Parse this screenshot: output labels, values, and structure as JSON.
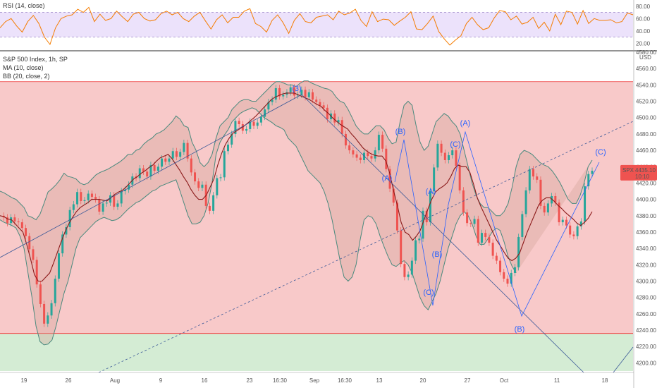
{
  "chart_data": [
    {
      "type": "line",
      "panel": "rsi",
      "title": "RSI (14, close)",
      "ylim": [
        10,
        90
      ],
      "y_ticks": [
        "80.00",
        "60.00",
        "40.00",
        "20.00"
      ],
      "y_tick_values": [
        80,
        60,
        40,
        20
      ],
      "band": [
        30,
        70
      ],
      "series": [
        {
          "values": [
            45,
            55,
            60,
            48,
            38,
            55,
            65,
            52,
            30,
            18,
            45,
            60,
            64,
            66,
            75,
            70,
            78,
            55,
            67,
            57,
            60,
            72,
            63,
            55,
            67,
            70,
            60,
            56,
            58,
            68,
            72,
            66,
            70,
            60,
            55,
            64,
            70,
            56,
            43,
            58,
            66,
            53,
            62,
            62,
            72,
            76,
            52,
            47,
            38,
            57,
            66,
            53,
            36,
            57,
            68,
            55,
            53,
            62,
            64,
            66,
            58,
            72,
            66,
            69,
            75,
            57,
            47,
            71,
            55,
            59,
            58,
            49,
            56,
            62,
            71,
            43,
            42,
            52,
            64,
            39,
            27,
            17,
            25,
            32,
            52,
            62,
            50,
            42,
            45,
            61,
            73,
            71,
            58,
            64,
            51,
            54,
            62,
            44,
            54,
            40,
            67,
            50,
            72,
            70,
            51,
            73,
            52,
            60,
            57,
            57,
            58,
            53,
            55,
            69,
            66
          ]
        }
      ]
    },
    {
      "type": "line",
      "panel": "price",
      "title": "S&P 500 Index, 1h, SP",
      "indicators": [
        "MA (10, close)",
        "BB (20, close, 2)"
      ],
      "currency": "USD",
      "ylim": [
        4190,
        4580
      ],
      "y_ticks": [
        "4580.00",
        "4560.00",
        "4540.00",
        "4520.00",
        "4500.00",
        "4480.00",
        "4460.00",
        "4440.00",
        "4420.00",
        "4400.00",
        "4380.00",
        "4360.00",
        "4340.00",
        "4320.00",
        "4300.00",
        "4280.00",
        "4260.00",
        "4240.00",
        "4220.00",
        "4200.00"
      ],
      "y_tick_values": [
        4580,
        4560,
        4540,
        4520,
        4500,
        4480,
        4460,
        4440,
        4420,
        4400,
        4380,
        4360,
        4340,
        4320,
        4300,
        4280,
        4260,
        4240,
        4220,
        4200
      ],
      "x_tick_labels": [
        "19",
        "26",
        "Aug",
        "9",
        "16",
        "23",
        "16:30",
        "Sep",
        "16:30",
        "13",
        "20",
        "27",
        "Oct",
        "11",
        "18"
      ],
      "last_price": {
        "symbol": "SPX",
        "value": "4435.10",
        "countdown": "10:10"
      },
      "zones": [
        {
          "from": 4236,
          "to": 4544,
          "color": "#f8c9c9"
        },
        {
          "from": 4190,
          "to": 4236,
          "color": "#d4ecd4"
        }
      ],
      "close": [
        4380,
        4378,
        4371,
        4378,
        4373,
        4372,
        4365,
        4355,
        4339,
        4326,
        4296,
        4272,
        4248,
        4258,
        4273,
        4303,
        4334,
        4357,
        4366,
        4387,
        4394,
        4409,
        4398,
        4399,
        4407,
        4403,
        4400,
        4385,
        4395,
        4396,
        4405,
        4391,
        4395,
        4410,
        4412,
        4418,
        4428,
        4426,
        4438,
        4434,
        4428,
        4442,
        4435,
        4440,
        4450,
        4446,
        4450,
        4459,
        4452,
        4458,
        4469,
        4450,
        4433,
        4422,
        4414,
        4418,
        4392,
        4386,
        4405,
        4426,
        4427,
        4459,
        4467,
        4480,
        4496,
        4492,
        4484,
        4486,
        4495,
        4490,
        4494,
        4501,
        4510,
        4519,
        4522,
        4536,
        4526,
        4528,
        4531,
        4537,
        4527,
        4528,
        4534,
        4525,
        4531,
        4522,
        4519,
        4515,
        4512,
        4498,
        4505,
        4494,
        4497,
        4480,
        4466,
        4460,
        4455,
        4451,
        4448,
        4457,
        4453,
        4450,
        4460,
        4479,
        4462,
        4437,
        4413,
        4396,
        4362,
        4321,
        4305,
        4308,
        4325,
        4350,
        4352,
        4386,
        4372,
        4410,
        4439,
        4468,
        4457,
        4448,
        4454,
        4460,
        4441,
        4411,
        4384,
        4371,
        4370,
        4376,
        4347,
        4359,
        4354,
        4347,
        4331,
        4325,
        4311,
        4303,
        4297,
        4310,
        4317,
        4354,
        4382,
        4411,
        4437,
        4428,
        4424,
        4392,
        4384,
        4395,
        4404,
        4396,
        4372,
        4375,
        4368,
        4357,
        4355,
        4367,
        4373,
        4416,
        4431,
        4435
      ],
      "ma10": [
        4380,
        4379,
        4376,
        4375,
        4370,
        4365,
        4360,
        4345,
        4327,
        4308,
        4300,
        4300,
        4305,
        4310,
        4322,
        4335,
        4348,
        4360,
        4370,
        4378,
        4385,
        4390,
        4393,
        4396,
        4400,
        4400,
        4400,
        4399,
        4398,
        4402,
        4406,
        4409,
        4411,
        4415,
        4420,
        4425,
        4428,
        4432,
        4435,
        4439,
        4442,
        4447,
        4451,
        4453,
        4455,
        4450,
        4443,
        4436,
        4428,
        4421,
        4412,
        4405,
        4400,
        4400,
        4405,
        4415,
        4425,
        4442,
        4456,
        4467,
        4475,
        4481,
        4484,
        4487,
        4490,
        4494,
        4498,
        4502,
        4507,
        4512,
        4517,
        4522,
        4525,
        4527,
        4529,
        4530,
        4530,
        4530,
        4528,
        4526,
        4524,
        4522,
        4519,
        4516,
        4514,
        4509,
        4505,
        4500,
        4496,
        4492,
        4489,
        4486,
        4480,
        4475,
        4469,
        4463,
        4459,
        4456,
        4454,
        4453,
        4453,
        4447,
        4432,
        4411,
        4393,
        4372,
        4360,
        4357,
        4350,
        4355,
        4362,
        4375,
        4388,
        4400,
        4409,
        4413,
        4416,
        4420,
        4428,
        4438,
        4442,
        4440,
        4440,
        4433,
        4418,
        4401,
        4390,
        4380,
        4370,
        4360,
        4350,
        4343,
        4335,
        4328,
        4325,
        4328,
        4334,
        4347,
        4360,
        4371,
        4382,
        4393,
        4399,
        4402,
        4402,
        4398,
        4393,
        4389,
        4384,
        4380,
        4376,
        4371,
        4368,
        4372,
        4377,
        4385
      ],
      "bb_upper": [
        4410,
        4408,
        4405,
        4402,
        4400,
        4395,
        4390,
        4380,
        4378,
        4375,
        4382,
        4395,
        4409,
        4413,
        4418,
        4424,
        4432,
        4428,
        4427,
        4425,
        4420,
        4418,
        4420,
        4425,
        4430,
        4433,
        4435,
        4437,
        4440,
        4443,
        4446,
        4450,
        4455,
        4455,
        4460,
        4462,
        4468,
        4472,
        4475,
        4480,
        4482,
        4485,
        4490,
        4495,
        4502,
        4498,
        4490,
        4488,
        4470,
        4460,
        4445,
        4440,
        4445,
        4455,
        4475,
        4490,
        4495,
        4500,
        4510,
        4515,
        4520,
        4522,
        4522,
        4520,
        4520,
        4525,
        4530,
        4535,
        4540,
        4544,
        4544,
        4542,
        4540,
        4540,
        4538,
        4542,
        4545,
        4545,
        4542,
        4540,
        4538,
        4536,
        4535,
        4532,
        4525,
        4520,
        4518,
        4510,
        4500,
        4490,
        4484,
        4480,
        4480,
        4485,
        4490,
        4490,
        4485,
        4475,
        4468,
        4470,
        4495,
        4515,
        4520,
        4515,
        4490,
        4470,
        4460,
        4465,
        4480,
        4495,
        4500,
        4505,
        4502,
        4495,
        4490,
        4480,
        4460,
        4440,
        4420,
        4405,
        4395,
        4390,
        4390,
        4385,
        4380,
        4380,
        4385,
        4395,
        4415,
        4440,
        4455,
        4460,
        4458,
        4455,
        4450,
        4445,
        4442,
        4440,
        4435,
        4428,
        4420,
        4410,
        4400,
        4395,
        4395,
        4405,
        4420,
        4440,
        4448
      ],
      "bb_lower": [
        4375,
        4372,
        4370,
        4368,
        4365,
        4355,
        4340,
        4310,
        4280,
        4245,
        4226,
        4222,
        4223,
        4228,
        4245,
        4265,
        4285,
        4300,
        4320,
        4340,
        4353,
        4358,
        4363,
        4368,
        4373,
        4376,
        4378,
        4376,
        4374,
        4375,
        4378,
        4383,
        4388,
        4392,
        4396,
        4398,
        4402,
        4406,
        4410,
        4412,
        4416,
        4418,
        4420,
        4422,
        4424,
        4410,
        4395,
        4380,
        4370,
        4370,
        4372,
        4380,
        4395,
        4420,
        4455,
        4470,
        4478,
        4485,
        4495,
        4500,
        4505,
        4508,
        4510,
        4512,
        4510,
        4505,
        4500,
        4497,
        4494,
        4490,
        4488,
        4485,
        4475,
        4470,
        4465,
        4455,
        4445,
        4435,
        4430,
        4425,
        4420,
        4410,
        4395,
        4375,
        4350,
        4325,
        4305,
        4300,
        4305,
        4320,
        4350,
        4375,
        4380,
        4378,
        4370,
        4355,
        4342,
        4330,
        4320,
        4318,
        4322,
        4325,
        4320,
        4310,
        4295,
        4280,
        4270,
        4265,
        4275,
        4285,
        4300,
        4320,
        4340,
        4355,
        4370,
        4380,
        4385,
        4380,
        4370,
        4355,
        4345,
        4345,
        4352,
        4360,
        4365,
        4362,
        4348,
        4330,
        4318,
        4310
      ]
    }
  ],
  "wave_labels": [
    "(3)",
    "(B)",
    "(A)",
    "(C)",
    "(A)",
    "(A)",
    "(B)",
    "(C)",
    "(B)",
    "(C)"
  ]
}
